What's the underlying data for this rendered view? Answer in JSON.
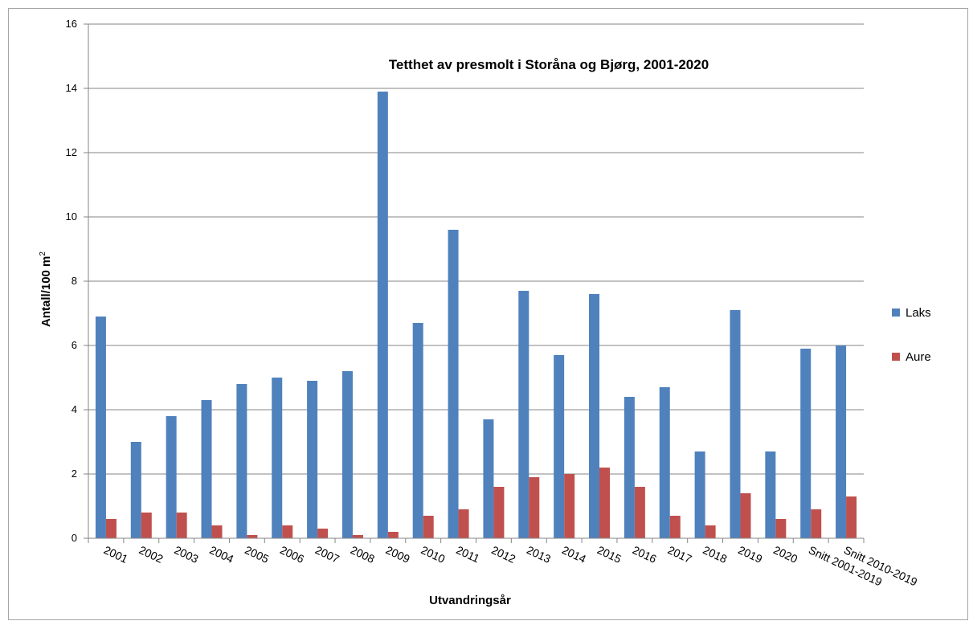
{
  "chart_data": {
    "type": "bar",
    "title": "Tetthet av presmolt i Storåna og Bjørg, 2001-2020",
    "xlabel": "Utvandringsår",
    "ylabel_main": "Antall/100 m",
    "ylabel_sup": "2",
    "ylim": [
      0,
      16
    ],
    "yticks": [
      "0",
      "2",
      "4",
      "6",
      "8",
      "10",
      "12",
      "14",
      "16"
    ],
    "grid": true,
    "legend_position": "right",
    "categories": [
      "2001",
      "2002",
      "2003",
      "2004",
      "2005",
      "2006",
      "2007",
      "2008",
      "2009",
      "2010",
      "2011",
      "2012",
      "2013",
      "2014",
      "2015",
      "2016",
      "2017",
      "2018",
      "2019",
      "2020",
      "Snitt 2001-2019",
      "Snitt 2010-2019"
    ],
    "series": [
      {
        "name": "Laks",
        "color": "#4f81bd",
        "values": [
          6.9,
          3.0,
          3.8,
          4.3,
          4.8,
          5.0,
          4.9,
          5.2,
          13.9,
          6.7,
          9.6,
          3.7,
          7.7,
          5.7,
          7.6,
          4.4,
          4.7,
          2.7,
          7.1,
          2.7,
          5.9,
          6.0
        ]
      },
      {
        "name": "Aure",
        "color": "#c0504d",
        "values": [
          0.6,
          0.8,
          0.8,
          0.4,
          0.1,
          0.4,
          0.3,
          0.1,
          0.2,
          0.7,
          0.9,
          1.6,
          1.9,
          2.0,
          2.2,
          1.6,
          0.7,
          0.4,
          1.4,
          0.6,
          0.9,
          1.3
        ]
      }
    ]
  }
}
